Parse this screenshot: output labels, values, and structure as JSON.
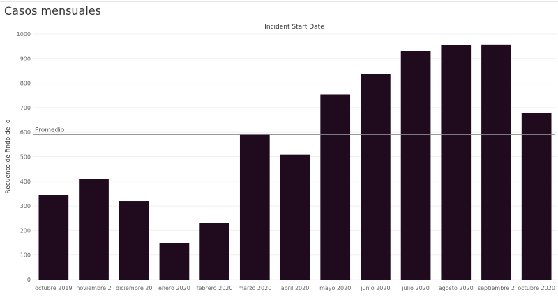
{
  "page": {
    "title": "Casos mensuales"
  },
  "chart_data": {
    "type": "bar",
    "title": "Casos mensuales",
    "xlabel": "Incident Start Date",
    "ylabel": "Recuento de findo de Id",
    "ylim": [
      0,
      1000
    ],
    "yticks": [
      0,
      100,
      200,
      300,
      400,
      500,
      600,
      700,
      800,
      900,
      1000
    ],
    "grid": true,
    "bar_color": "#1f0a1e",
    "categories": [
      "octubre 2019",
      "noviembre 2",
      "diciembre 20",
      "enero 2020",
      "febrero 2020",
      "marzo 2020",
      "abril 2020",
      "mayo 2020",
      "junio 2020",
      "julio 2020",
      "agosto 2020",
      "septiembre 2",
      "octubre 2020"
    ],
    "values": [
      345,
      410,
      320,
      150,
      230,
      595,
      508,
      755,
      838,
      932,
      957,
      958,
      678
    ],
    "reference_line": {
      "label": "Promedio",
      "value": 591
    }
  }
}
